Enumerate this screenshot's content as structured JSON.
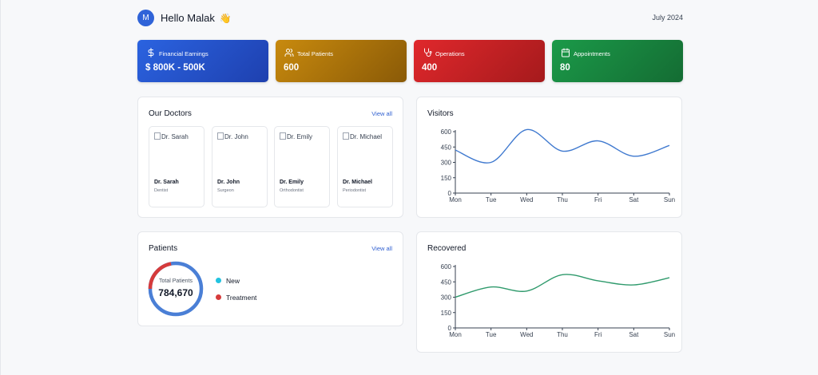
{
  "header": {
    "avatar_initial": "M",
    "greeting": "Hello Malak",
    "wave_emoji": "👋",
    "date": "July 2024"
  },
  "stats": [
    {
      "label": "Financial Earnings",
      "value": "$ 800K - 500K",
      "icon": "dollar-icon",
      "color": "#2b63e0"
    },
    {
      "label": "Total Patients",
      "value": "600",
      "icon": "users-icon",
      "color": "#c88a0e"
    },
    {
      "label": "Operations",
      "value": "400",
      "icon": "stethoscope-icon",
      "color": "#e0282c"
    },
    {
      "label": "Appointments",
      "value": "80",
      "icon": "calendar-icon",
      "color": "#1b9a49"
    }
  ],
  "doctors": {
    "title": "Our Doctors",
    "view_all": "View all",
    "items": [
      {
        "img_alt": "Dr. Sarah",
        "name": "Dr. Sarah",
        "role": "Dentist"
      },
      {
        "img_alt": "Dr. John",
        "name": "Dr. John",
        "role": "Surgeon"
      },
      {
        "img_alt": "Dr. Emily",
        "name": "Dr. Emily",
        "role": "Orthodontist"
      },
      {
        "img_alt": "Dr. Michael",
        "name": "Dr. Michael",
        "role": "Periodontist"
      }
    ]
  },
  "patients": {
    "title": "Patients",
    "view_all": "View all",
    "total_label": "Total Patients",
    "total_value": "784,670",
    "legend": [
      {
        "label": "New",
        "color": "#22c3e0"
      },
      {
        "label": "Treatment",
        "color": "#d63b3b"
      }
    ],
    "ring": {
      "treatment_fraction": 0.22,
      "ring_color": "#4a7fd6",
      "treatment_color": "#d63b3b"
    }
  },
  "chart_data": [
    {
      "type": "line",
      "title": "Visitors",
      "categories": [
        "Mon",
        "Tue",
        "Wed",
        "Thu",
        "Fri",
        "Sat",
        "Sun"
      ],
      "values": [
        420,
        300,
        620,
        410,
        510,
        360,
        465
      ],
      "yticks": [
        0,
        150,
        300,
        450,
        600
      ],
      "ylim": [
        0,
        600
      ],
      "color": "#3f79cf"
    },
    {
      "type": "line",
      "title": "Recovered",
      "categories": [
        "Mon",
        "Tue",
        "Wed",
        "Thu",
        "Fri",
        "Sat",
        "Sun"
      ],
      "values": [
        300,
        400,
        360,
        520,
        460,
        420,
        490
      ],
      "yticks": [
        0,
        150,
        300,
        450,
        600
      ],
      "ylim": [
        0,
        600
      ],
      "color": "#2f9a6c"
    }
  ]
}
